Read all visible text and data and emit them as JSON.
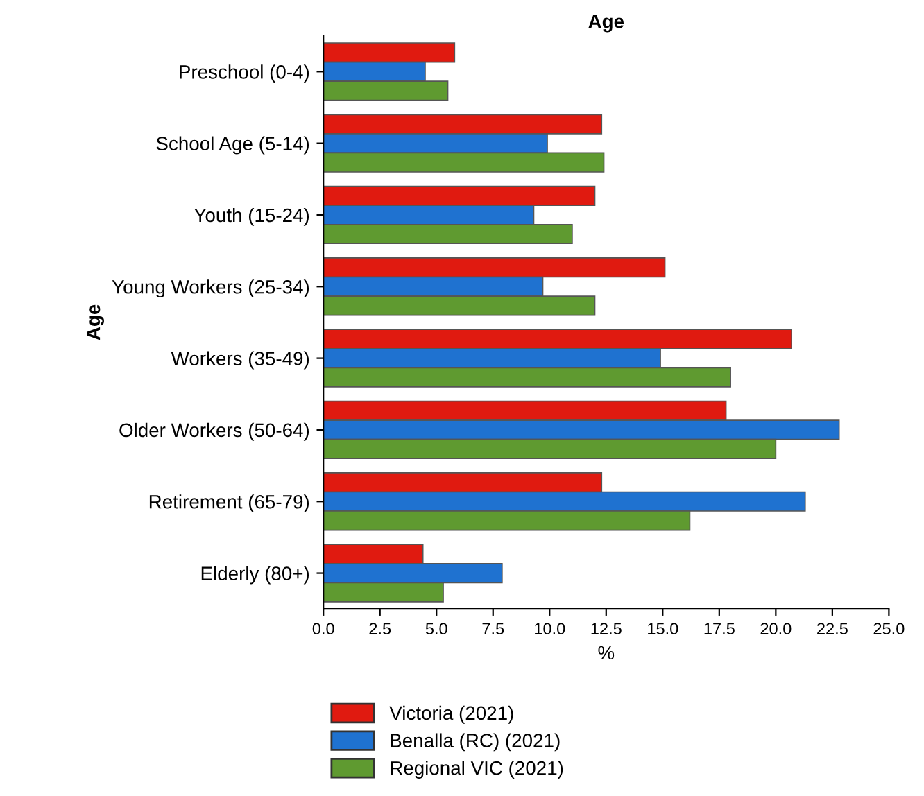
{
  "chart_data": {
    "type": "bar",
    "orientation": "horizontal",
    "title": "Age",
    "ylabel": "Age",
    "xlabel": "%",
    "categories": [
      "Preschool (0-4)",
      "School Age (5-14)",
      "Youth (15-24)",
      "Young Workers (25-34)",
      "Workers (35-49)",
      "Older Workers (50-64)",
      "Retirement (65-79)",
      "Elderly (80+)"
    ],
    "series": [
      {
        "name": "Victoria (2021)",
        "color": "#e01a10",
        "values": [
          5.8,
          12.3,
          12.0,
          15.1,
          20.7,
          17.8,
          12.3,
          4.4
        ]
      },
      {
        "name": "Benalla (RC) (2021)",
        "color": "#1f72d0",
        "values": [
          4.5,
          9.9,
          9.3,
          9.7,
          14.9,
          22.8,
          21.3,
          7.9
        ]
      },
      {
        "name": "Regional VIC (2021)",
        "color": "#5f9a30",
        "values": [
          5.5,
          12.4,
          11.0,
          12.0,
          18.0,
          20.0,
          16.2,
          5.3
        ]
      }
    ],
    "xlim": [
      0,
      25
    ],
    "xticks": [
      {
        "value": 0,
        "label": "0.0"
      },
      2.5,
      {
        "value": 5,
        "label": "5.0"
      },
      7.5,
      {
        "value": 10,
        "label": "10.0"
      },
      12.5,
      {
        "value": 15,
        "label": "15.0"
      },
      17.5,
      {
        "value": 20,
        "label": "20.0"
      },
      22.5,
      {
        "value": 25,
        "label": "25.0"
      }
    ],
    "grid": false,
    "legend": "bottom"
  }
}
